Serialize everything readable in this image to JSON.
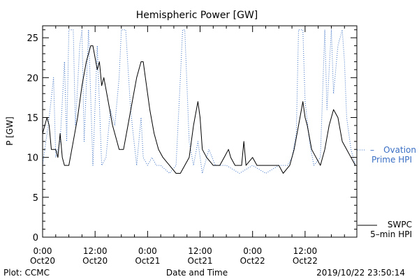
{
  "chart_data": {
    "type": "line",
    "title": "Hemispheric Power [GW]",
    "xlabel": "Date and Time",
    "ylabel": "P [GW]",
    "ylim": [
      0,
      26.5
    ],
    "xlim": [
      "2019-10-20 00:00",
      "2019-10-22 23:50"
    ],
    "grid": false,
    "y_ticks": [
      0,
      5,
      10,
      15,
      20,
      25
    ],
    "x_ticks": [
      {
        "t": "2019-10-20 00:00",
        "time": "0:00",
        "date": "Oct20"
      },
      {
        "t": "2019-10-20 12:00",
        "time": "12:00",
        "date": "Oct20"
      },
      {
        "t": "2019-10-21 00:00",
        "time": "0:00",
        "date": "Oct21"
      },
      {
        "t": "2019-10-21 12:00",
        "time": "12:00",
        "date": "Oct21"
      },
      {
        "t": "2019-10-22 00:00",
        "time": "0:00",
        "date": "Oct22"
      },
      {
        "t": "2019-10-22 12:00",
        "time": "12:00",
        "date": "Oct22"
      }
    ],
    "series": [
      {
        "name": "Ovation Prime HPI",
        "color": "#3a6fc4",
        "style": "dotted",
        "points": [
          [
            "2019-10-20 00:00",
            9
          ],
          [
            "2019-10-20 01:30",
            15
          ],
          [
            "2019-10-20 02:30",
            20
          ],
          [
            "2019-10-20 03:00",
            10
          ],
          [
            "2019-10-20 04:00",
            12
          ],
          [
            "2019-10-20 05:00",
            22
          ],
          [
            "2019-10-20 05:30",
            12
          ],
          [
            "2019-10-20 06:00",
            26
          ],
          [
            "2019-10-20 07:00",
            26
          ],
          [
            "2019-10-20 07:30",
            14
          ],
          [
            "2019-10-20 08:30",
            24
          ],
          [
            "2019-10-20 09:00",
            26
          ],
          [
            "2019-10-20 09:30",
            12
          ],
          [
            "2019-10-20 10:30",
            26
          ],
          [
            "2019-10-20 11:30",
            9
          ],
          [
            "2019-10-20 12:30",
            24
          ],
          [
            "2019-10-20 13:30",
            9
          ],
          [
            "2019-10-20 14:30",
            10
          ],
          [
            "2019-10-20 15:30",
            16
          ],
          [
            "2019-10-20 16:30",
            14
          ],
          [
            "2019-10-20 17:30",
            20
          ],
          [
            "2019-10-20 18:00",
            26
          ],
          [
            "2019-10-20 19:00",
            26
          ],
          [
            "2019-10-20 20:00",
            17
          ],
          [
            "2019-10-20 20:30",
            14
          ],
          [
            "2019-10-20 21:30",
            9
          ],
          [
            "2019-10-20 22:30",
            15
          ],
          [
            "2019-10-20 23:00",
            10
          ],
          [
            "2019-10-21 00:00",
            9
          ],
          [
            "2019-10-21 01:00",
            10
          ],
          [
            "2019-10-21 02:00",
            9
          ],
          [
            "2019-10-21 03:00",
            9
          ],
          [
            "2019-10-21 05:00",
            8
          ],
          [
            "2019-10-21 06:30",
            9
          ],
          [
            "2019-10-21 07:30",
            20
          ],
          [
            "2019-10-21 08:00",
            26
          ],
          [
            "2019-10-21 08:30",
            26
          ],
          [
            "2019-10-21 09:30",
            12
          ],
          [
            "2019-10-21 10:30",
            9
          ],
          [
            "2019-10-21 11:30",
            12
          ],
          [
            "2019-10-21 12:30",
            8
          ],
          [
            "2019-10-21 14:00",
            11
          ],
          [
            "2019-10-21 15:30",
            9
          ],
          [
            "2019-10-21 18:00",
            9
          ],
          [
            "2019-10-21 21:00",
            8
          ],
          [
            "2019-10-22 00:00",
            9
          ],
          [
            "2019-10-22 03:00",
            8
          ],
          [
            "2019-10-22 06:00",
            9
          ],
          [
            "2019-10-22 08:00",
            9
          ],
          [
            "2019-10-22 09:00",
            10
          ],
          [
            "2019-10-22 10:00",
            13
          ],
          [
            "2019-10-22 10:30",
            26
          ],
          [
            "2019-10-22 11:30",
            26
          ],
          [
            "2019-10-22 12:00",
            17
          ],
          [
            "2019-10-22 13:00",
            12
          ],
          [
            "2019-10-22 14:00",
            9
          ],
          [
            "2019-10-22 15:30",
            10
          ],
          [
            "2019-10-22 16:30",
            26
          ],
          [
            "2019-10-22 17:00",
            16
          ],
          [
            "2019-10-22 18:00",
            26
          ],
          [
            "2019-10-22 18:30",
            18
          ],
          [
            "2019-10-22 19:30",
            24
          ],
          [
            "2019-10-22 20:30",
            26
          ],
          [
            "2019-10-22 21:00",
            22
          ],
          [
            "2019-10-22 21:30",
            15
          ],
          [
            "2019-10-22 22:30",
            11
          ],
          [
            "2019-10-22 23:30",
            9
          ]
        ]
      },
      {
        "name": "SWPC 5-min HPI",
        "color": "#000000",
        "style": "solid",
        "points": [
          [
            "2019-10-20 00:00",
            13
          ],
          [
            "2019-10-20 01:00",
            15
          ],
          [
            "2019-10-20 01:30",
            14
          ],
          [
            "2019-10-20 02:00",
            11
          ],
          [
            "2019-10-20 03:00",
            11
          ],
          [
            "2019-10-20 03:30",
            10
          ],
          [
            "2019-10-20 04:00",
            13
          ],
          [
            "2019-10-20 04:30",
            10
          ],
          [
            "2019-10-20 05:00",
            9
          ],
          [
            "2019-10-20 06:00",
            9
          ],
          [
            "2019-10-20 07:00",
            12
          ],
          [
            "2019-10-20 08:00",
            15
          ],
          [
            "2019-10-20 09:00",
            19
          ],
          [
            "2019-10-20 10:00",
            22
          ],
          [
            "2019-10-20 11:00",
            24
          ],
          [
            "2019-10-20 11:30",
            24
          ],
          [
            "2019-10-20 12:30",
            21
          ],
          [
            "2019-10-20 13:00",
            22
          ],
          [
            "2019-10-20 13:30",
            19
          ],
          [
            "2019-10-20 14:00",
            20
          ],
          [
            "2019-10-20 15:00",
            17
          ],
          [
            "2019-10-20 16:00",
            14
          ],
          [
            "2019-10-20 17:00",
            12
          ],
          [
            "2019-10-20 17:30",
            11
          ],
          [
            "2019-10-20 18:30",
            11
          ],
          [
            "2019-10-20 19:30",
            14
          ],
          [
            "2019-10-20 20:30",
            17
          ],
          [
            "2019-10-20 21:30",
            20
          ],
          [
            "2019-10-20 22:30",
            22
          ],
          [
            "2019-10-20 23:00",
            22
          ],
          [
            "2019-10-20 23:30",
            20
          ],
          [
            "2019-10-21 00:30",
            16
          ],
          [
            "2019-10-21 01:30",
            13
          ],
          [
            "2019-10-21 02:30",
            11
          ],
          [
            "2019-10-21 03:30",
            10
          ],
          [
            "2019-10-21 05:00",
            9
          ],
          [
            "2019-10-21 06:30",
            8
          ],
          [
            "2019-10-21 07:30",
            8
          ],
          [
            "2019-10-21 08:30",
            9
          ],
          [
            "2019-10-21 09:30",
            10
          ],
          [
            "2019-10-21 10:30",
            14
          ],
          [
            "2019-10-21 11:30",
            17
          ],
          [
            "2019-10-21 12:00",
            15
          ],
          [
            "2019-10-21 12:30",
            11
          ],
          [
            "2019-10-21 13:30",
            10
          ],
          [
            "2019-10-21 15:00",
            9
          ],
          [
            "2019-10-21 16:30",
            9
          ],
          [
            "2019-10-21 17:30",
            10
          ],
          [
            "2019-10-21 18:30",
            11
          ],
          [
            "2019-10-21 19:00",
            10
          ],
          [
            "2019-10-21 20:00",
            9
          ],
          [
            "2019-10-21 21:30",
            9
          ],
          [
            "2019-10-21 22:00",
            12
          ],
          [
            "2019-10-21 22:30",
            9
          ],
          [
            "2019-10-22 00:00",
            10
          ],
          [
            "2019-10-22 01:00",
            9
          ],
          [
            "2019-10-22 03:00",
            9
          ],
          [
            "2019-10-22 04:30",
            9
          ],
          [
            "2019-10-22 06:00",
            9
          ],
          [
            "2019-10-22 07:00",
            8
          ],
          [
            "2019-10-22 08:30",
            9
          ],
          [
            "2019-10-22 09:30",
            11
          ],
          [
            "2019-10-22 10:30",
            14
          ],
          [
            "2019-10-22 11:30",
            17
          ],
          [
            "2019-10-22 12:00",
            15
          ],
          [
            "2019-10-22 12:30",
            14
          ],
          [
            "2019-10-22 13:30",
            11
          ],
          [
            "2019-10-22 14:30",
            10
          ],
          [
            "2019-10-22 15:30",
            9
          ],
          [
            "2019-10-22 16:30",
            11
          ],
          [
            "2019-10-22 17:30",
            14
          ],
          [
            "2019-10-22 18:30",
            16
          ],
          [
            "2019-10-22 19:30",
            15
          ],
          [
            "2019-10-22 20:30",
            12
          ],
          [
            "2019-10-22 21:30",
            11
          ],
          [
            "2019-10-22 22:30",
            10
          ],
          [
            "2019-10-22 23:30",
            9
          ]
        ]
      }
    ],
    "legend": {
      "placement": "right",
      "ovation": {
        "line1": "Ovation",
        "line2": "Prime HPI",
        "dash": "–"
      },
      "swpc": {
        "line1": "SWPC",
        "line2": "5–min HPI"
      }
    }
  },
  "footer": {
    "plot_credit": "Plot: CCMC",
    "timestamp": "2019/10/22 23:50:14"
  }
}
